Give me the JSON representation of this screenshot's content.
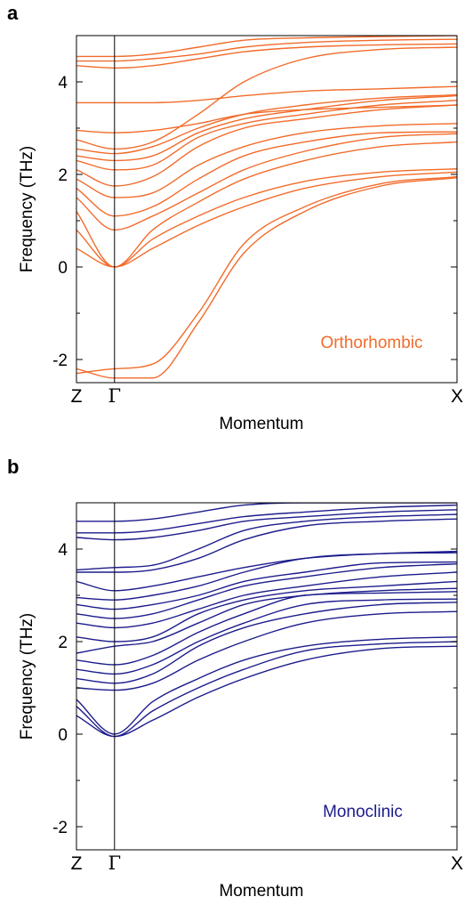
{
  "chart_data": [
    {
      "type": "line",
      "panel_label": "a",
      "xlabel": "Momentum",
      "ylabel": "Frequency (THz)",
      "x_ticks": [
        "Z",
        "Γ",
        "X"
      ],
      "y_ticks": [
        -2,
        0,
        2,
        4
      ],
      "ylim": [
        -2.5,
        5.0
      ],
      "annotation": "Orthorhombic",
      "color": "#f26b2a",
      "x_nodes": [
        0,
        1,
        2,
        3.2,
        4.4,
        6.0,
        8.0,
        10.0
      ],
      "series": [
        {
          "values": [
            -2.3,
            -2.2,
            -2.1,
            -1.0,
            0.5,
            1.3,
            1.8,
            1.95
          ]
        },
        {
          "values": [
            -2.2,
            -2.4,
            -2.4,
            -1.2,
            0.3,
            1.2,
            1.75,
            1.93
          ]
        },
        {
          "values": [
            0.4,
            0.0,
            0.4,
            0.9,
            1.3,
            1.7,
            1.95,
            2.05
          ]
        },
        {
          "values": [
            0.8,
            0.0,
            0.6,
            1.1,
            1.5,
            1.85,
            2.05,
            2.12
          ]
        },
        {
          "values": [
            1.2,
            0.0,
            0.8,
            1.4,
            1.9,
            2.3,
            2.6,
            2.7
          ]
        },
        {
          "values": [
            1.5,
            0.8,
            1.1,
            1.6,
            2.1,
            2.5,
            2.8,
            2.88
          ]
        },
        {
          "values": [
            1.7,
            1.1,
            1.3,
            1.9,
            2.4,
            2.7,
            2.9,
            2.92
          ]
        },
        {
          "values": [
            1.9,
            1.5,
            1.6,
            2.2,
            2.6,
            2.9,
            3.05,
            3.1
          ]
        },
        {
          "values": [
            2.1,
            1.75,
            1.95,
            2.6,
            3.0,
            3.2,
            3.4,
            3.5
          ]
        },
        {
          "values": [
            2.3,
            2.1,
            2.2,
            2.8,
            3.1,
            3.3,
            3.5,
            3.6
          ]
        },
        {
          "values": [
            2.4,
            2.3,
            2.4,
            2.9,
            3.2,
            3.4,
            3.6,
            3.7
          ]
        },
        {
          "values": [
            2.55,
            2.45,
            2.6,
            3.0,
            3.3,
            3.5,
            3.65,
            3.72
          ]
        },
        {
          "values": [
            2.75,
            2.55,
            2.7,
            3.3,
            4.0,
            4.5,
            4.7,
            4.75
          ]
        },
        {
          "values": [
            2.95,
            2.9,
            2.95,
            3.1,
            3.3,
            3.4,
            3.45,
            3.5
          ]
        },
        {
          "values": [
            3.55,
            3.55,
            3.55,
            3.6,
            3.7,
            3.8,
            3.85,
            3.9
          ]
        },
        {
          "values": [
            4.35,
            4.3,
            4.35,
            4.5,
            4.65,
            4.75,
            4.8,
            4.82
          ]
        },
        {
          "values": [
            4.45,
            4.45,
            4.5,
            4.6,
            4.75,
            4.85,
            4.9,
            4.92
          ]
        },
        {
          "values": [
            4.55,
            4.55,
            4.6,
            4.75,
            4.9,
            4.95,
            4.98,
            5.0
          ]
        }
      ]
    },
    {
      "type": "line",
      "panel_label": "b",
      "xlabel": "Momentum",
      "ylabel": "Frequency (THz)",
      "x_ticks": [
        "Z",
        "Γ",
        "X"
      ],
      "y_ticks": [
        -2,
        0,
        2,
        4
      ],
      "ylim": [
        -2.5,
        5.0
      ],
      "annotation": "Monoclinic",
      "color": "#1c1c8c",
      "x_nodes": [
        0,
        1,
        2,
        3.2,
        4.4,
        6.0,
        8.0,
        10.0
      ],
      "series": [
        {
          "values": [
            0.4,
            -0.05,
            0.3,
            0.8,
            1.2,
            1.6,
            1.85,
            1.9
          ]
        },
        {
          "values": [
            0.6,
            -0.05,
            0.5,
            1.0,
            1.4,
            1.8,
            1.95,
            2.0
          ]
        },
        {
          "values": [
            0.75,
            0.0,
            0.7,
            1.2,
            1.6,
            1.9,
            2.05,
            2.1
          ]
        },
        {
          "values": [
            1.0,
            0.95,
            1.1,
            1.6,
            2.0,
            2.4,
            2.6,
            2.65
          ]
        },
        {
          "values": [
            1.2,
            1.1,
            1.3,
            1.9,
            2.3,
            2.6,
            2.8,
            2.85
          ]
        },
        {
          "values": [
            1.4,
            1.3,
            1.5,
            2.0,
            2.4,
            2.8,
            2.9,
            2.92
          ]
        },
        {
          "values": [
            1.6,
            1.5,
            1.7,
            2.2,
            2.6,
            3.0,
            3.05,
            3.08
          ]
        },
        {
          "values": [
            1.75,
            1.9,
            2.0,
            2.4,
            2.8,
            3.0,
            3.1,
            3.15
          ]
        },
        {
          "values": [
            2.1,
            2.0,
            2.1,
            2.6,
            2.9,
            3.1,
            3.2,
            3.3
          ]
        },
        {
          "values": [
            2.4,
            2.3,
            2.4,
            2.7,
            3.0,
            3.2,
            3.4,
            3.5
          ]
        },
        {
          "values": [
            2.6,
            2.5,
            2.6,
            2.9,
            3.2,
            3.4,
            3.6,
            3.68
          ]
        },
        {
          "values": [
            2.8,
            2.7,
            2.8,
            3.0,
            3.3,
            3.5,
            3.7,
            3.72
          ]
        },
        {
          "values": [
            2.95,
            2.9,
            3.0,
            3.2,
            3.5,
            3.8,
            3.9,
            3.92
          ]
        },
        {
          "values": [
            3.3,
            3.1,
            3.2,
            3.4,
            3.6,
            3.8,
            3.9,
            3.95
          ]
        },
        {
          "values": [
            3.5,
            3.5,
            3.55,
            3.8,
            4.2,
            4.5,
            4.6,
            4.65
          ]
        },
        {
          "values": [
            3.55,
            3.6,
            3.65,
            4.0,
            4.4,
            4.6,
            4.7,
            4.75
          ]
        },
        {
          "values": [
            4.25,
            4.2,
            4.25,
            4.4,
            4.6,
            4.7,
            4.8,
            4.85
          ]
        },
        {
          "values": [
            4.35,
            4.35,
            4.4,
            4.55,
            4.7,
            4.8,
            4.9,
            4.95
          ]
        },
        {
          "values": [
            4.6,
            4.6,
            4.65,
            4.8,
            4.95,
            5.0,
            5.0,
            5.0
          ]
        }
      ]
    }
  ]
}
